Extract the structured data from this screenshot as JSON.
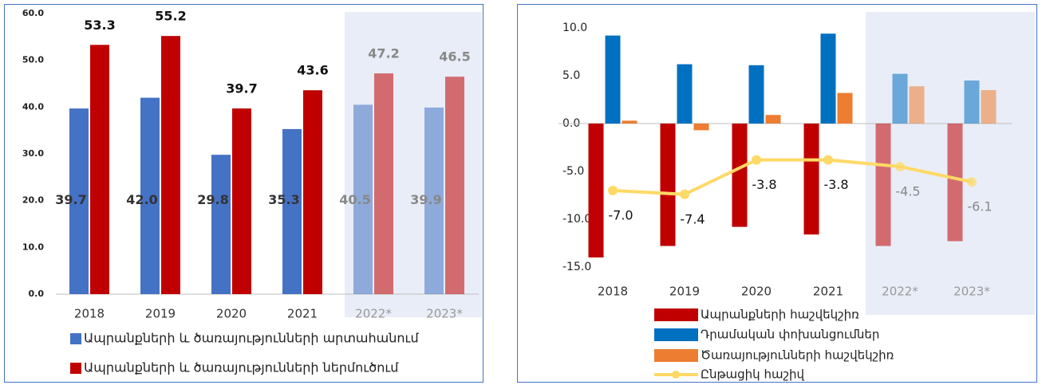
{
  "chart_data": [
    {
      "type": "bar",
      "categories": [
        "2018",
        "2019",
        "2020",
        "2021",
        "2022*",
        "2023*"
      ],
      "series": [
        {
          "name": "Ապրանքների և ծառայությունների արտահանում",
          "color": "#4472c4",
          "values": [
            39.7,
            42.0,
            29.8,
            35.3,
            40.5,
            39.9
          ],
          "value_labels": [
            "39.7",
            "42.0",
            "29.8",
            "35.3",
            "40.5",
            "39.9"
          ]
        },
        {
          "name": "Ապրանքների և ծառայությունների ներմուծում",
          "color": "#c00000",
          "values": [
            53.3,
            55.2,
            39.7,
            43.6,
            47.2,
            46.5
          ],
          "value_labels": [
            "53.3",
            "55.2",
            "39.7",
            "43.6",
            "47.2",
            "46.5"
          ]
        }
      ],
      "ylim": [
        0,
        60
      ],
      "yticks": [
        {
          "value": 0,
          "label": "0.0"
        },
        {
          "value": 10,
          "label": "10.0"
        },
        {
          "value": 20,
          "label": "20.0"
        },
        {
          "value": 30,
          "label": "30.0"
        },
        {
          "value": 40,
          "label": "40.0"
        },
        {
          "value": 50,
          "label": "50.0"
        },
        {
          "value": 60,
          "label": "60.0"
        }
      ],
      "legend": "bottom"
    },
    {
      "type": "bar",
      "categories": [
        "2018",
        "2019",
        "2020",
        "2021",
        "2022*",
        "2023*"
      ],
      "series": [
        {
          "name": "Ապրանքների  հաշվեկշիռ",
          "color": "#c00000",
          "values": [
            -14.0,
            -12.8,
            -10.8,
            -11.6,
            -12.8,
            -12.3
          ]
        },
        {
          "name": "Դրամական փոխանցումներ",
          "color": "#0070c0",
          "values": [
            9.2,
            6.2,
            6.1,
            9.4,
            5.2,
            4.5
          ]
        },
        {
          "name": "Ծառայությունների հաշվեկշիռ",
          "color": "#ed7d31",
          "values": [
            0.3,
            -0.7,
            0.9,
            3.2,
            3.9,
            3.5
          ]
        },
        {
          "name": "Ընթացիկ հաշիվ",
          "type": "line",
          "color": "#ffd966",
          "values": [
            -7.0,
            -7.4,
            -3.8,
            -3.8,
            -4.5,
            -6.1
          ],
          "value_labels": [
            "-7.0",
            "-7.4",
            "-3.8",
            "-3.8",
            "-4.5",
            "-6.1"
          ]
        }
      ],
      "ylim": [
        -15,
        10
      ],
      "yticks": [
        {
          "value": -15,
          "label": "-15.0"
        },
        {
          "value": -10,
          "label": "-10.0"
        },
        {
          "value": -5,
          "label": "-5.0"
        },
        {
          "value": 0,
          "label": "0.0"
        },
        {
          "value": 5,
          "label": "5.0"
        },
        {
          "value": 10,
          "label": "10.0"
        }
      ],
      "legend": "bottom"
    }
  ]
}
